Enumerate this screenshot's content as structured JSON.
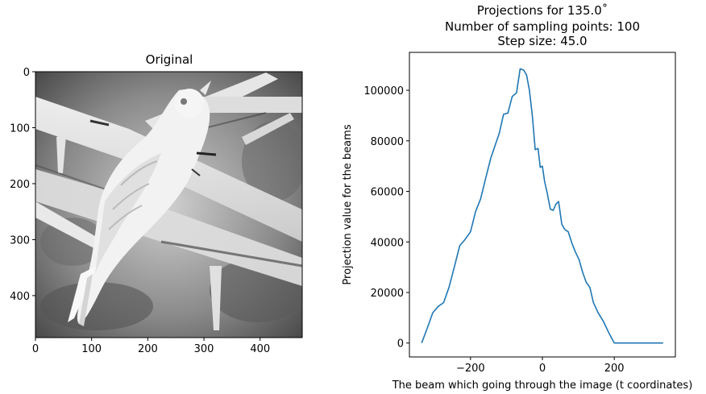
{
  "chart_data": [
    {
      "type": "image",
      "title": "Original",
      "xlim": [
        0,
        475
      ],
      "ylim": [
        475,
        0
      ],
      "xticks": [
        0,
        100,
        200,
        300,
        400
      ],
      "yticks": [
        0,
        100,
        200,
        300,
        400
      ],
      "colormap": "gray"
    },
    {
      "type": "line",
      "title": "Projections for 135.0$^\\circ$",
      "title_display": "Projections for 135.0˚",
      "subtitle_line1": "Number of sampling points: 100",
      "subtitle_line2": "Step size: 45.0",
      "xlabel": "The beam which going through the image (t coordinates)",
      "ylabel": "Projection value for the beams",
      "xlim": [
        -370,
        370
      ],
      "ylim": [
        -5500,
        115000
      ],
      "xticks": [
        -200,
        0,
        200
      ],
      "xtick_labels": [
        "−200",
        "0",
        "200"
      ],
      "yticks": [
        0,
        20000,
        40000,
        60000,
        80000,
        100000
      ],
      "ytick_labels": [
        "0",
        "20000",
        "40000",
        "60000",
        "80000",
        "100000"
      ],
      "line_color": "#1f77b4",
      "series": [
        {
          "x": [
            -336,
            -320,
            -305,
            -290,
            -275,
            -260,
            -245,
            -230,
            -215,
            -200,
            -186,
            -172,
            -158,
            -144,
            -132,
            -120,
            -108,
            -96,
            -84,
            -72,
            -62,
            -52,
            -44,
            -36,
            -28,
            -20,
            -12,
            -6,
            0,
            6,
            14,
            22,
            30,
            38,
            45,
            54,
            62,
            72,
            82,
            92,
            102,
            112,
            122,
            132,
            142,
            155,
            170,
            185,
            200,
            215,
            230,
            245,
            260,
            275,
            290,
            305,
            320,
            336
          ],
          "y": [
            0,
            6000,
            12000,
            14500,
            16000,
            22000,
            30000,
            38500,
            41000,
            44000,
            52000,
            57000,
            65000,
            73000,
            78000,
            83000,
            90500,
            91000,
            97500,
            99000,
            108500,
            108000,
            106000,
            100000,
            90000,
            76500,
            77000,
            69500,
            70000,
            64000,
            59000,
            53000,
            52500,
            55000,
            56000,
            47000,
            45000,
            44000,
            39500,
            36000,
            33000,
            28000,
            24000,
            22000,
            16000,
            12000,
            8500,
            4000,
            0,
            0,
            0,
            0,
            0,
            0,
            0,
            0,
            0,
            0
          ]
        }
      ]
    }
  ]
}
